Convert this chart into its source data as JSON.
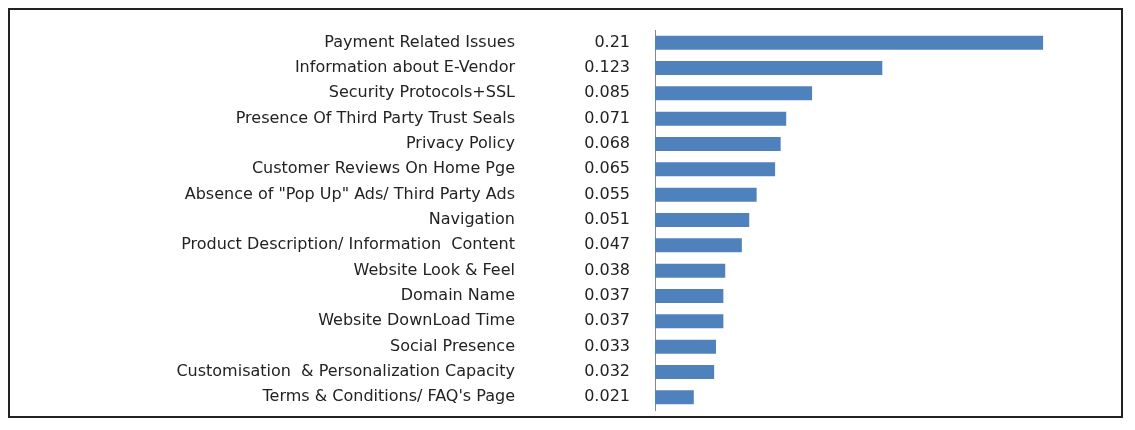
{
  "chart_data": {
    "type": "bar",
    "orientation": "horizontal",
    "categories": [
      "Payment Related Issues",
      "Information about E-Vendor",
      "Security Protocols+SSL",
      "Presence Of Third Party Trust Seals",
      "Privacy Policy",
      "Customer Reviews On Home Pge",
      "Absence of \"Pop Up\" Ads/ Third Party Ads",
      "Navigation",
      "Product Description/ Information  Content",
      "Website Look & Feel",
      "Domain Name",
      "Website DownLoad Time",
      "Social Presence",
      "Customisation  & Personalization Capacity",
      "Terms & Conditions/ FAQ's Page"
    ],
    "values": [
      0.21,
      0.123,
      0.085,
      0.071,
      0.068,
      0.065,
      0.055,
      0.051,
      0.047,
      0.038,
      0.037,
      0.037,
      0.033,
      0.032,
      0.021
    ],
    "color": "#4f81bd",
    "data_labels": true,
    "grid": false,
    "legend": false
  }
}
